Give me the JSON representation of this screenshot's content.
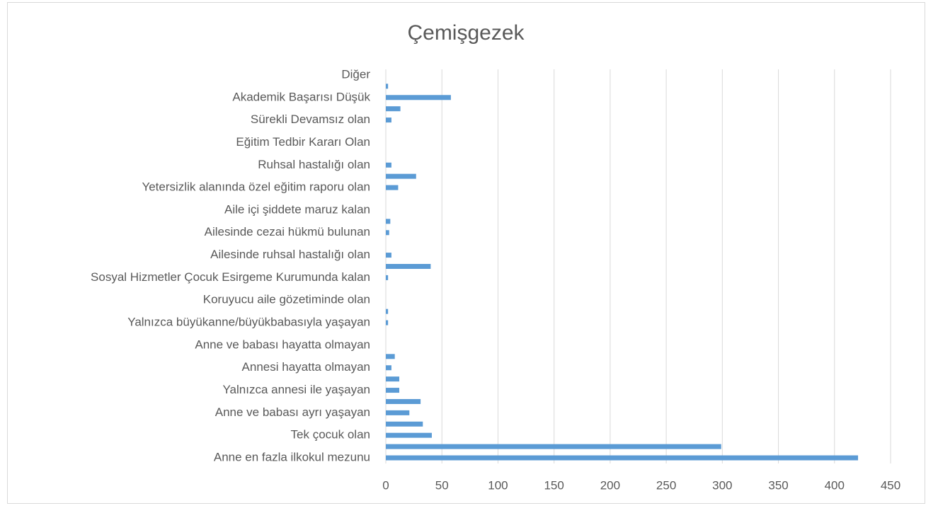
{
  "chart_data": {
    "type": "bar",
    "orientation": "horizontal",
    "title": "Çemişgezek",
    "categories": [
      "Anne en fazla ilkokul mezunu",
      null,
      "Tek çocuk olan",
      null,
      "Anne ve babası ayrı yaşayan",
      null,
      "Yalnızca annesi ile yaşayan",
      null,
      "Annesi hayatta olmayan",
      null,
      "Anne ve babası hayatta olmayan",
      null,
      "Yalnızca büyükanne/büyükbabasıyla yaşayan",
      null,
      "Koruyucu aile gözetiminde olan",
      null,
      "Sosyal Hizmetler Çocuk Esirgeme Kurumunda kalan",
      null,
      "Ailesinde ruhsal hastalığı olan",
      null,
      "Ailesinde cezai hükmü bulunan",
      null,
      "Aile içi şiddete maruz kalan",
      null,
      "Yetersizlik alanında özel eğitim raporu olan",
      null,
      "Ruhsal hastalığı olan",
      null,
      "Eğitim Tedbir Kararı Olan",
      null,
      "Sürekli Devamsız olan",
      null,
      "Akademik Başarısı Düşük",
      null,
      "Diğer"
    ],
    "values": [
      421,
      299,
      41,
      33,
      21,
      31,
      12,
      12,
      5,
      8,
      0,
      0,
      2,
      2,
      0,
      0,
      2,
      40,
      5,
      0,
      3,
      4,
      0,
      0,
      11,
      27,
      5,
      0,
      0,
      0,
      5,
      13,
      58,
      2,
      0
    ],
    "color": "#5b9bd5",
    "xlim": [
      0,
      450
    ],
    "xticks": [
      0,
      50,
      100,
      150,
      200,
      250,
      300,
      350,
      400,
      450
    ],
    "grid": true
  }
}
